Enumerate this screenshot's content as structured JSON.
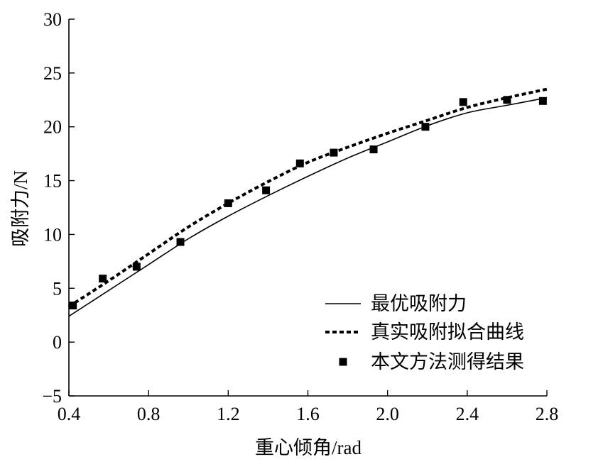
{
  "chart_data": {
    "type": "line",
    "title": "",
    "xlabel": "重心倾角/rad",
    "ylabel": "吸附力/N",
    "xlim": [
      0.4,
      2.8
    ],
    "ylim": [
      -5,
      30
    ],
    "xticks": [
      0.4,
      0.8,
      1.2,
      1.6,
      2.0,
      2.4,
      2.8
    ],
    "xtick_labels": [
      "0.4",
      "0.8",
      "1.2",
      "1.6",
      "2.0",
      "2.4",
      "2.8"
    ],
    "yticks": [
      -5,
      0,
      5,
      10,
      15,
      20,
      25,
      30
    ],
    "ytick_labels": [
      "−5",
      "0",
      "5",
      "10",
      "15",
      "20",
      "25",
      "30"
    ],
    "grid": false,
    "legend_position": "bottom-right",
    "series": [
      {
        "name": "最优吸附力",
        "style": "solid",
        "color": "#000000",
        "x": [
          0.4,
          0.6,
          0.8,
          1.0,
          1.2,
          1.4,
          1.6,
          1.8,
          2.0,
          2.2,
          2.4,
          2.6,
          2.8
        ],
        "y": [
          2.4,
          4.8,
          7.2,
          9.6,
          11.7,
          13.6,
          15.4,
          17.1,
          18.6,
          20.1,
          21.3,
          22.0,
          22.7
        ]
      },
      {
        "name": "真实吸附拟合曲线",
        "style": "dashed",
        "color": "#000000",
        "x": [
          0.4,
          0.6,
          0.8,
          1.0,
          1.2,
          1.4,
          1.6,
          1.8,
          2.0,
          2.2,
          2.4,
          2.6,
          2.8
        ],
        "y": [
          3.3,
          5.7,
          8.2,
          10.7,
          12.9,
          14.9,
          16.7,
          18.1,
          19.4,
          20.6,
          21.8,
          22.7,
          23.5
        ]
      },
      {
        "name": "本文方法测得结果",
        "style": "markers",
        "marker": "square",
        "color": "#000000",
        "x": [
          0.42,
          0.57,
          0.74,
          0.96,
          1.2,
          1.39,
          1.56,
          1.73,
          1.93,
          2.19,
          2.38,
          2.6,
          2.78
        ],
        "y": [
          3.4,
          5.9,
          7.0,
          9.3,
          12.9,
          14.1,
          16.6,
          17.6,
          17.9,
          20.0,
          22.3,
          22.5,
          22.4
        ]
      }
    ]
  }
}
